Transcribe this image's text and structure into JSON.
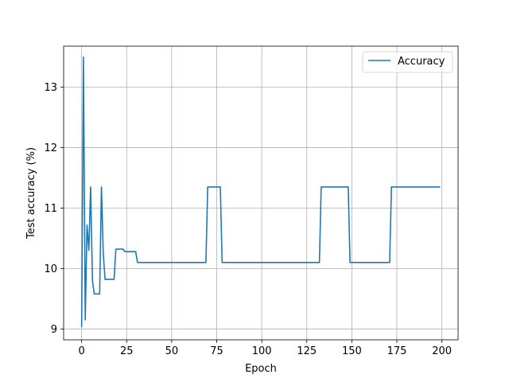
{
  "chart_data": {
    "type": "line",
    "title": "",
    "xlabel": "Epoch",
    "ylabel": "Test accuracy (%)",
    "xlim": [
      -10,
      209
    ],
    "ylim": [
      8.82,
      13.68
    ],
    "xticks": [
      0,
      25,
      50,
      75,
      100,
      125,
      150,
      175,
      200
    ],
    "yticks": [
      9,
      10,
      11,
      12,
      13
    ],
    "grid": true,
    "legend": {
      "placement": "top-right",
      "entries": [
        "Accuracy"
      ]
    },
    "colors": {
      "series": "#1f77b4"
    },
    "series": [
      {
        "name": "Accuracy",
        "x": [
          0,
          1,
          2,
          3,
          4,
          5,
          6,
          7,
          8,
          9,
          10,
          11,
          12,
          13,
          14,
          15,
          16,
          17,
          18,
          19,
          20,
          21,
          22,
          23,
          24,
          25,
          26,
          27,
          28,
          29,
          30,
          31,
          69,
          70,
          71,
          72,
          73,
          74,
          75,
          76,
          77,
          78,
          132,
          133,
          134,
          135,
          136,
          137,
          138,
          139,
          140,
          141,
          142,
          143,
          144,
          145,
          146,
          147,
          148,
          149,
          171,
          172,
          199
        ],
        "values": [
          9.03,
          13.5,
          9.15,
          10.72,
          10.3,
          11.35,
          9.8,
          9.58,
          9.58,
          9.58,
          9.58,
          11.35,
          10.25,
          9.82,
          9.82,
          9.82,
          9.82,
          9.82,
          9.82,
          10.32,
          10.32,
          10.32,
          10.32,
          10.32,
          10.28,
          10.28,
          10.28,
          10.28,
          10.28,
          10.28,
          10.28,
          10.1,
          10.1,
          11.35,
          11.35,
          11.35,
          11.35,
          11.35,
          11.35,
          11.35,
          11.35,
          10.1,
          10.1,
          11.35,
          11.35,
          11.35,
          11.35,
          11.35,
          11.35,
          11.35,
          11.35,
          11.35,
          11.35,
          11.35,
          11.35,
          11.35,
          11.35,
          11.35,
          11.35,
          10.1,
          10.1,
          11.35,
          11.35
        ]
      }
    ]
  }
}
